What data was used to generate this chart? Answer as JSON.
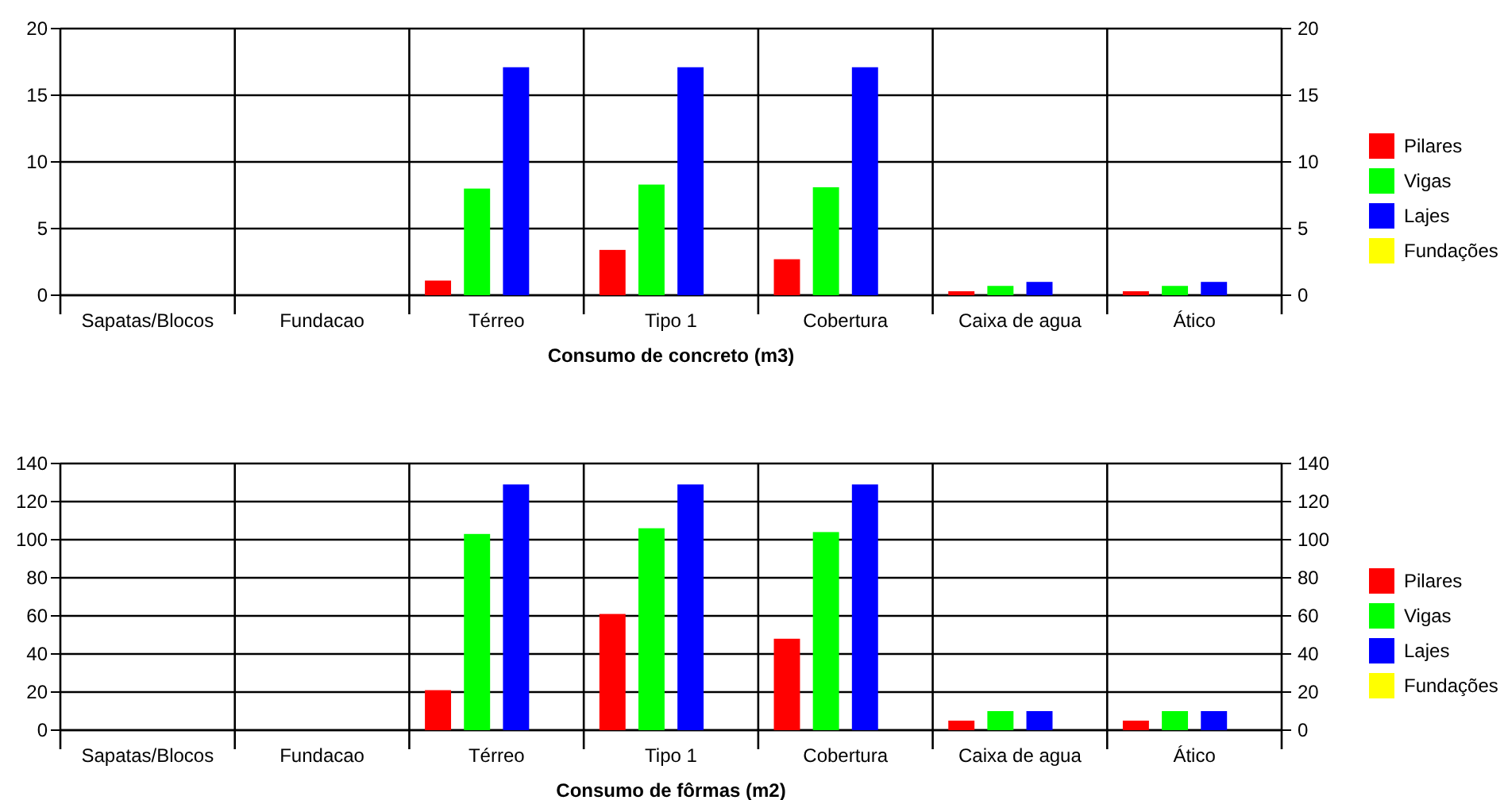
{
  "chart_data": [
    {
      "type": "bar",
      "xlabel": "Consumo de concreto (m3)",
      "categories": [
        "Sapatas/Blocos",
        "Fundacao",
        "Térreo",
        "Tipo 1",
        "Cobertura",
        "Caixa de agua",
        "Ático"
      ],
      "series": [
        {
          "name": "Pilares",
          "color": "#ff0000",
          "values": [
            0,
            0,
            1.1,
            3.4,
            2.7,
            0.3,
            0.3
          ]
        },
        {
          "name": "Vigas",
          "color": "#00ff00",
          "values": [
            0,
            0,
            8.0,
            8.3,
            8.1,
            0.7,
            0.7
          ]
        },
        {
          "name": "Lajes",
          "color": "#0000ff",
          "values": [
            0,
            0,
            17.1,
            17.1,
            17.1,
            1.0,
            1.0
          ]
        },
        {
          "name": "Fundações",
          "color": "#ffff00",
          "values": [
            0,
            0,
            0,
            0,
            0,
            0,
            0
          ]
        }
      ],
      "ylim": [
        0,
        20
      ],
      "yticks": [
        0,
        5,
        10,
        15,
        20
      ],
      "y2lim": [
        0,
        20
      ],
      "y2ticks": [
        0,
        5,
        10,
        15,
        20
      ],
      "grid": true,
      "legend": "right"
    },
    {
      "type": "bar",
      "xlabel": "Consumo de fôrmas (m2)",
      "categories": [
        "Sapatas/Blocos",
        "Fundacao",
        "Térreo",
        "Tipo 1",
        "Cobertura",
        "Caixa de agua",
        "Ático"
      ],
      "series": [
        {
          "name": "Pilares",
          "color": "#ff0000",
          "values": [
            0,
            0,
            21,
            61,
            48,
            5,
            5
          ]
        },
        {
          "name": "Vigas",
          "color": "#00ff00",
          "values": [
            0,
            0,
            103,
            106,
            104,
            10,
            10
          ]
        },
        {
          "name": "Lajes",
          "color": "#0000ff",
          "values": [
            0,
            0,
            129,
            129,
            129,
            10,
            10
          ]
        },
        {
          "name": "Fundações",
          "color": "#ffff00",
          "values": [
            0,
            0,
            0,
            0,
            0,
            0,
            0
          ]
        }
      ],
      "ylim": [
        0,
        140
      ],
      "yticks": [
        0,
        20,
        40,
        60,
        80,
        100,
        120,
        140
      ],
      "y2lim": [
        0,
        140
      ],
      "y2ticks": [
        0,
        20,
        40,
        60,
        80,
        100,
        120,
        140
      ],
      "grid": true,
      "legend": "right"
    }
  ]
}
